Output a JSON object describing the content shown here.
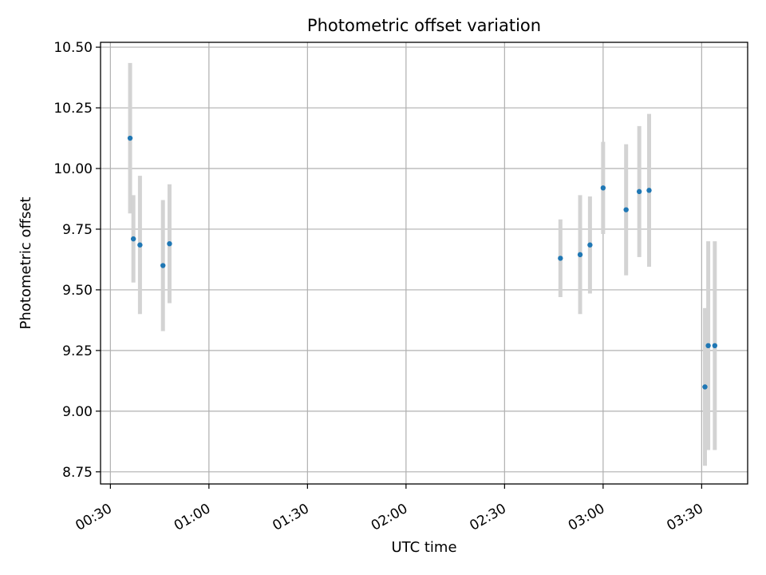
{
  "chart_data": {
    "type": "scatter",
    "title": "Photometric offset variation",
    "xlabel": "UTC time",
    "ylabel": "Photometric offset",
    "grid": true,
    "x_tick_labels": [
      "00:30",
      "01:00",
      "01:30",
      "02:00",
      "02:30",
      "03:00",
      "03:30"
    ],
    "y_tick_labels": [
      "8.75",
      "9.00",
      "9.25",
      "9.50",
      "9.75",
      "10.00",
      "10.25",
      "10.50"
    ],
    "xlim": [
      "00:27",
      "03:44"
    ],
    "ylim": [
      8.7,
      10.52
    ],
    "series": [
      {
        "marker_color": "#1f77b4",
        "errorbar_color": "#d3d3d3",
        "points": [
          {
            "x": "00:36",
            "y": 10.125,
            "err": 0.31
          },
          {
            "x": "00:37",
            "y": 9.71,
            "err": 0.18
          },
          {
            "x": "00:39",
            "y": 9.685,
            "err": 0.285
          },
          {
            "x": "00:46",
            "y": 9.6,
            "err": 0.27
          },
          {
            "x": "00:48",
            "y": 9.69,
            "err": 0.245
          },
          {
            "x": "02:47",
            "y": 9.63,
            "err": 0.16
          },
          {
            "x": "02:53",
            "y": 9.645,
            "err": 0.245
          },
          {
            "x": "02:56",
            "y": 9.685,
            "err": 0.2
          },
          {
            "x": "03:00",
            "y": 9.92,
            "err": 0.19
          },
          {
            "x": "03:07",
            "y": 9.83,
            "err": 0.27
          },
          {
            "x": "03:11",
            "y": 9.905,
            "err": 0.27
          },
          {
            "x": "03:14",
            "y": 9.91,
            "err": 0.315
          },
          {
            "x": "03:31",
            "y": 9.1,
            "err": 0.325
          },
          {
            "x": "03:32",
            "y": 9.27,
            "err": 0.43
          },
          {
            "x": "03:34",
            "y": 9.27,
            "err": 0.43
          }
        ]
      }
    ]
  }
}
